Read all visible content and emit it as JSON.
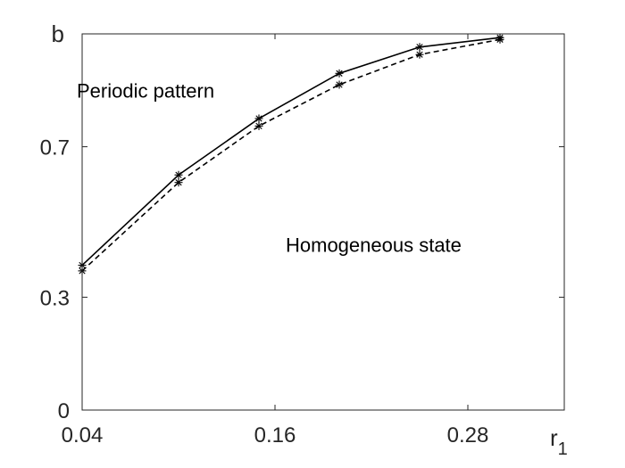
{
  "chart_data": {
    "type": "line",
    "title": "",
    "xlabel": "r",
    "xlabel_subscript": "1",
    "ylabel": "b",
    "xlim": [
      0.04,
      0.34
    ],
    "ylim": [
      0,
      1
    ],
    "xticks": [
      0.04,
      0.16,
      0.28
    ],
    "xtick_labels": [
      "0.04",
      "0.16",
      "0.28"
    ],
    "yticks": [
      0,
      0.3,
      0.7
    ],
    "ytick_labels": [
      "0",
      "0.3",
      "0.7"
    ],
    "grid": false,
    "series": [
      {
        "style": "solid",
        "marker": "asterisk",
        "color": "#000000",
        "x": [
          0.04,
          0.1,
          0.15,
          0.2,
          0.25,
          0.3
        ],
        "y": [
          0.385,
          0.625,
          0.775,
          0.895,
          0.965,
          0.99
        ]
      },
      {
        "style": "dashed",
        "marker": "asterisk",
        "color": "#000000",
        "x": [
          0.04,
          0.1,
          0.15,
          0.2,
          0.25,
          0.3
        ],
        "y": [
          0.37,
          0.605,
          0.755,
          0.865,
          0.945,
          0.985
        ]
      }
    ],
    "annotations": [
      {
        "text": "Periodic pattern",
        "x": 0.05,
        "y": 0.85
      },
      {
        "text": "Homogeneous state",
        "x": 0.18,
        "y": 0.44
      }
    ]
  }
}
